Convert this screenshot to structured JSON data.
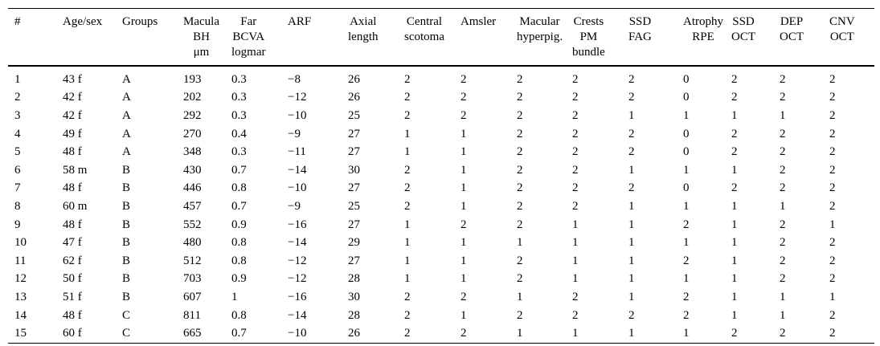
{
  "page": {
    "background": "#ffffff",
    "text_color": "#000000",
    "rule_color": "#000000"
  },
  "table": {
    "columns": [
      {
        "id": "num",
        "lines": [
          "#"
        ]
      },
      {
        "id": "age-sex",
        "lines": [
          "Age/sex"
        ]
      },
      {
        "id": "groups",
        "lines": [
          "Groups"
        ]
      },
      {
        "id": "macula-bh",
        "lines": [
          "Macula",
          "BH",
          "μm"
        ]
      },
      {
        "id": "far-bcva",
        "lines": [
          "Far",
          "BCVA",
          "logmar"
        ]
      },
      {
        "id": "arf",
        "lines": [
          "ARF"
        ]
      },
      {
        "id": "axial-length",
        "lines": [
          "Axial",
          "length"
        ]
      },
      {
        "id": "central-scotoma",
        "lines": [
          "Central",
          "scotoma"
        ]
      },
      {
        "id": "amsler",
        "lines": [
          "Amsler"
        ]
      },
      {
        "id": "macular-hyperpig",
        "lines": [
          "Macular",
          "hyperpig."
        ]
      },
      {
        "id": "crests-pm-bundle",
        "lines": [
          "Crests",
          "PM",
          "bundle"
        ]
      },
      {
        "id": "ssd-fag",
        "lines": [
          "SSD",
          "FAG"
        ]
      },
      {
        "id": "atrophy-rpe",
        "lines": [
          "Atrophy",
          "RPE"
        ]
      },
      {
        "id": "ssd-oct",
        "lines": [
          "SSD",
          "OCT"
        ]
      },
      {
        "id": "dep-oct",
        "lines": [
          "DEP",
          "OCT"
        ]
      },
      {
        "id": "cnv-oct",
        "lines": [
          "CNV",
          "OCT"
        ]
      }
    ],
    "rows": [
      [
        "1",
        "43 f",
        "A",
        "193",
        "0.3",
        "−8",
        "26",
        "2",
        "2",
        "2",
        "2",
        "2",
        "0",
        "2",
        "2",
        "2"
      ],
      [
        "2",
        "42 f",
        "A",
        "202",
        "0.3",
        "−12",
        "26",
        "2",
        "2",
        "2",
        "2",
        "2",
        "0",
        "2",
        "2",
        "2"
      ],
      [
        "3",
        "42 f",
        "A",
        "292",
        "0.3",
        "−10",
        "25",
        "2",
        "2",
        "2",
        "2",
        "1",
        "1",
        "1",
        "1",
        "2"
      ],
      [
        "4",
        "49 f",
        "A",
        "270",
        "0.4",
        "−9",
        "27",
        "1",
        "1",
        "2",
        "2",
        "2",
        "0",
        "2",
        "2",
        "2"
      ],
      [
        "5",
        "48 f",
        "A",
        "348",
        "0.3",
        "−11",
        "27",
        "1",
        "1",
        "2",
        "2",
        "2",
        "0",
        "2",
        "2",
        "2"
      ],
      [
        "6",
        "58 m",
        "B",
        "430",
        "0.7",
        "−14",
        "30",
        "2",
        "1",
        "2",
        "2",
        "1",
        "1",
        "1",
        "2",
        "2"
      ],
      [
        "7",
        "48 f",
        "B",
        "446",
        "0.8",
        "−10",
        "27",
        "2",
        "1",
        "2",
        "2",
        "2",
        "0",
        "2",
        "2",
        "2"
      ],
      [
        "8",
        "60 m",
        "B",
        "457",
        "0.7",
        "−9",
        "25",
        "2",
        "1",
        "2",
        "2",
        "1",
        "1",
        "1",
        "1",
        "2"
      ],
      [
        "9",
        "48 f",
        "B",
        "552",
        "0.9",
        "−16",
        "27",
        "1",
        "2",
        "2",
        "1",
        "1",
        "2",
        "1",
        "2",
        "1"
      ],
      [
        "10",
        "47 f",
        "B",
        "480",
        "0.8",
        "−14",
        "29",
        "1",
        "1",
        "1",
        "1",
        "1",
        "1",
        "1",
        "2",
        "2"
      ],
      [
        "11",
        "62 f",
        "B",
        "512",
        "0.8",
        "−12",
        "27",
        "1",
        "1",
        "2",
        "1",
        "1",
        "2",
        "1",
        "2",
        "2"
      ],
      [
        "12",
        "50 f",
        "B",
        "703",
        "0.9",
        "−12",
        "28",
        "1",
        "1",
        "2",
        "1",
        "1",
        "1",
        "1",
        "2",
        "2"
      ],
      [
        "13",
        "51 f",
        "B",
        "607",
        "1",
        "−16",
        "30",
        "2",
        "2",
        "1",
        "2",
        "1",
        "2",
        "1",
        "1",
        "1"
      ],
      [
        "14",
        "48 f",
        "C",
        "811",
        "0.8",
        "−14",
        "28",
        "2",
        "1",
        "2",
        "2",
        "2",
        "2",
        "1",
        "1",
        "2"
      ],
      [
        "15",
        "60 f",
        "C",
        "665",
        "0.7",
        "−10",
        "26",
        "2",
        "2",
        "1",
        "1",
        "1",
        "1",
        "2",
        "2",
        "2"
      ]
    ]
  }
}
